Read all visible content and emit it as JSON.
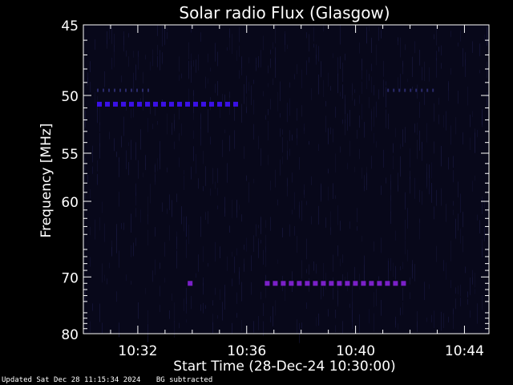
{
  "chart_data": {
    "type": "heatmap",
    "title": "Solar radio Flux (Glasgow)",
    "xlabel": "Start Time (28-Dec-24 10:30:00)",
    "ylabel": "Frequency [MHz]",
    "x_range_minutes": [
      10.5,
      10.74
    ],
    "x_ticks": [
      "10:32",
      "10:36",
      "10:40",
      "10:44"
    ],
    "y_ticks": [
      "45",
      "50",
      "55",
      "60",
      "70",
      "80"
    ],
    "y_scale": "reciprocal",
    "ylim": [
      45,
      80
    ],
    "colors": {
      "background": "#000000",
      "frame": "#ffffff",
      "plot_bg": "#08081a",
      "signal_blue": "#3a10e6",
      "signal_purple": "#7a20c8",
      "noise": "#16163a"
    },
    "features": [
      {
        "freq_mhz": 50.7,
        "start": "10:30:30",
        "end": "10:35:35",
        "color": "blue"
      },
      {
        "freq_mhz": 49.6,
        "start": "10:30:30",
        "end": "10:32:30",
        "color": "faint"
      },
      {
        "freq_mhz": 49.6,
        "start": "10:41:10",
        "end": "10:42:55",
        "color": "faint"
      },
      {
        "freq_mhz": 71.0,
        "start": "10:36:40",
        "end": "10:41:50",
        "color": "purple"
      },
      {
        "freq_mhz": 71.0,
        "start": "10:33:50",
        "end": "10:34:05",
        "color": "purple"
      }
    ]
  },
  "footer": {
    "updated": "Updated Sat Dec 28 11:15:34 2024",
    "note": "BG subtracted"
  }
}
